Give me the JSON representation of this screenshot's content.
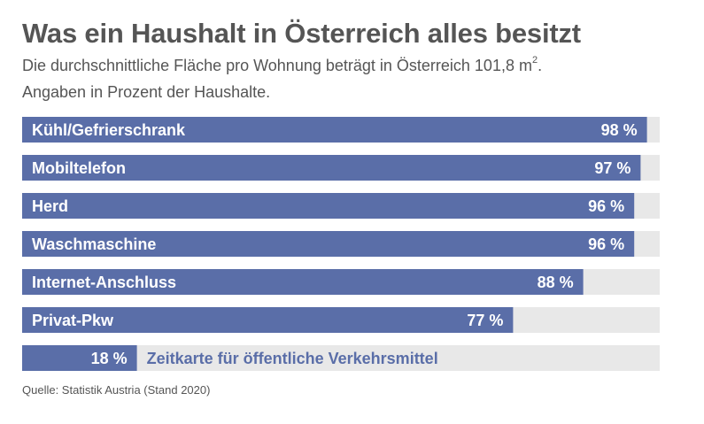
{
  "header": {
    "title": "Was ein Haushalt in Österreich alles besitzt",
    "subtitle_text": "Die durchschnittliche Fläche pro Wohnung beträgt in Österreich 101,8 m",
    "subtitle_sup": "2",
    "subtitle_end": ".",
    "subtitle2": "Angaben in Prozent der Haushalte."
  },
  "footer": {
    "source": "Quelle: Statistik Austria (Stand 2020)"
  },
  "colors": {
    "bar": "#5a6ea8",
    "track": "#e8e8e8",
    "label_inside": "#ffffff",
    "label_outside": "#5a6ea8"
  },
  "chart_data": {
    "type": "bar",
    "orientation": "horizontal",
    "title": "Was ein Haushalt in Österreich alles besitzt",
    "categories": [
      "Kühl/Gefrierschrank",
      "Mobiltelefon",
      "Herd",
      "Waschmaschine",
      "Internet-Anschluss",
      "Privat-Pkw",
      "Zeitkarte für öffentliche Verkehrsmittel"
    ],
    "values": [
      98,
      97,
      96,
      96,
      88,
      77,
      18
    ],
    "value_labels": [
      "98 %",
      "97 %",
      "96 %",
      "96 %",
      "88 %",
      "77 %",
      "18 %"
    ],
    "unit": "%",
    "xlim": [
      0,
      100
    ]
  }
}
